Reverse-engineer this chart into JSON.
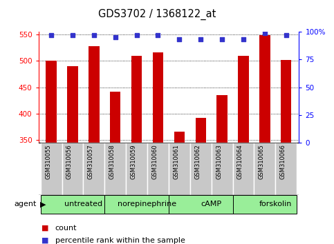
{
  "title": "GDS3702 / 1368122_at",
  "samples": [
    "GSM310055",
    "GSM310056",
    "GSM310057",
    "GSM310058",
    "GSM310059",
    "GSM310060",
    "GSM310061",
    "GSM310062",
    "GSM310063",
    "GSM310064",
    "GSM310065",
    "GSM310066"
  ],
  "counts": [
    500,
    490,
    527,
    442,
    510,
    516,
    366,
    392,
    435,
    510,
    549,
    502
  ],
  "percentile_ranks": [
    97,
    97,
    97,
    95,
    97,
    97,
    93,
    93,
    93,
    93,
    99,
    97
  ],
  "ylim_left": [
    345,
    555
  ],
  "ylim_right": [
    0,
    100
  ],
  "yticks_left": [
    350,
    400,
    450,
    500,
    550
  ],
  "yticks_right": [
    0,
    25,
    50,
    75,
    100
  ],
  "bar_color": "#cc0000",
  "dot_color": "#3333cc",
  "groups": [
    {
      "label": "untreated",
      "start": 0,
      "end": 3
    },
    {
      "label": "norepinephrine",
      "start": 3,
      "end": 6
    },
    {
      "label": "cAMP",
      "start": 6,
      "end": 9
    },
    {
      "label": "forskolin",
      "start": 9,
      "end": 12
    }
  ],
  "group_color_light": "#ccffcc",
  "group_color_dark": "#66ee66",
  "xlabel": "agent",
  "legend_count_color": "#cc0000",
  "legend_dot_color": "#3333cc",
  "tick_label_bg": "#cccccc",
  "grid_color": "#000000",
  "bar_width": 0.5
}
